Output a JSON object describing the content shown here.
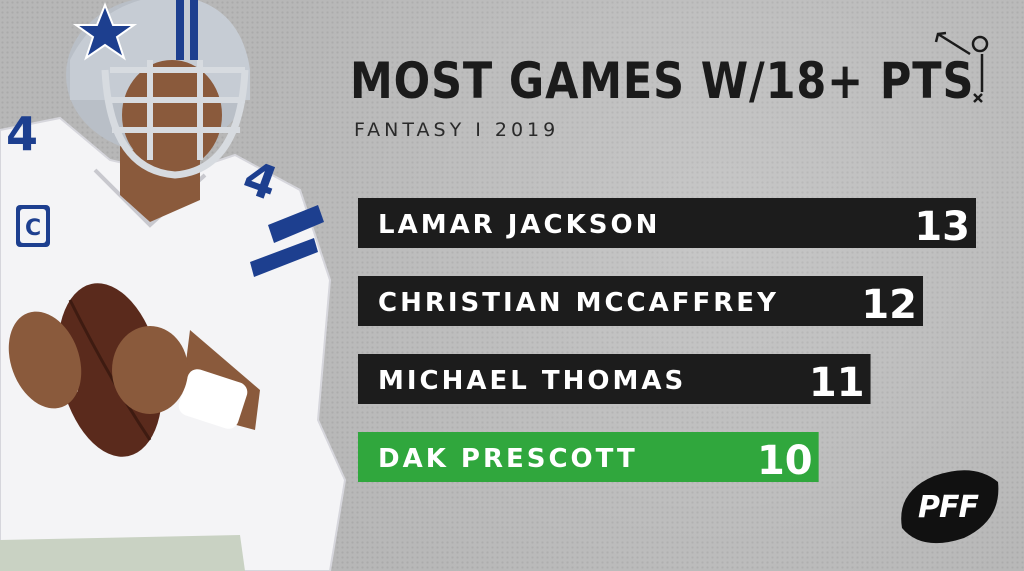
{
  "header": {
    "title": "MOST GAMES W/18+ PTS",
    "subtitle": "FANTASY I 2019"
  },
  "logo": {
    "text": "PFF"
  },
  "colors": {
    "background": "#b7b7b7",
    "bar_default": "#1c1c1c",
    "bar_highlight": "#30a73d"
  },
  "icons": {
    "corner": "play-diagram-icon",
    "photo": "dallas-quarterback-photo"
  },
  "chart_data": {
    "type": "bar",
    "orientation": "horizontal",
    "categories": [
      "LAMAR JACKSON",
      "CHRISTIAN MCCAFFREY",
      "MICHAEL THOMAS",
      "DAK PRESCOTT"
    ],
    "values": [
      13,
      12,
      11,
      10
    ],
    "highlight": "DAK PRESCOTT",
    "title": "MOST GAMES W/18+ PTS",
    "subtitle": "FANTASY I 2019",
    "xlabel": "",
    "ylabel": "",
    "grid": false,
    "legend": "none"
  }
}
